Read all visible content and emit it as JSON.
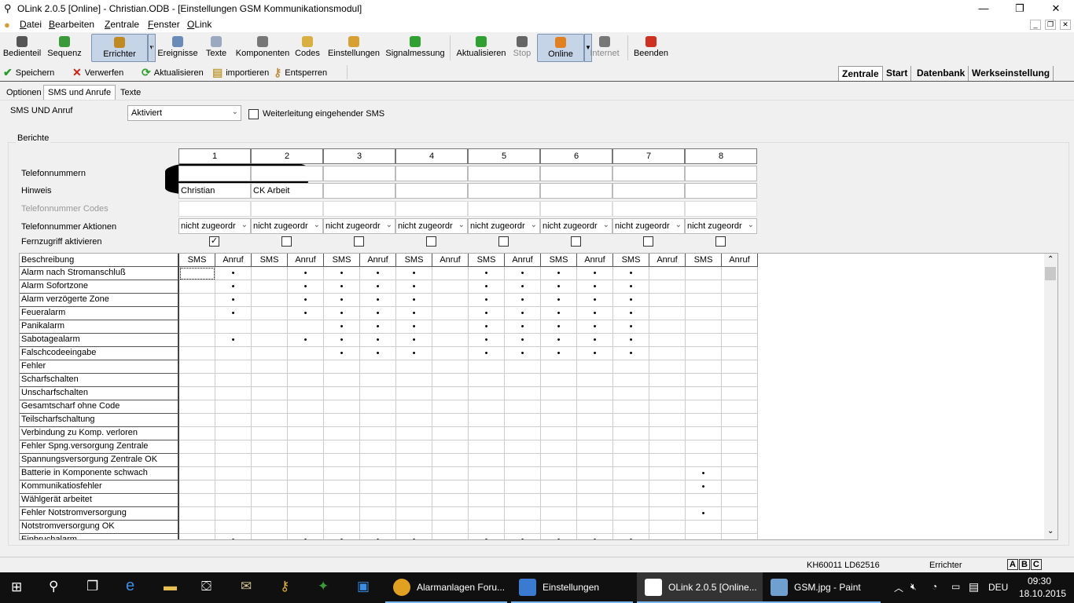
{
  "window": {
    "title": "OLink 2.0.5 [Online] - Christian.ODB - [Einstellungen GSM Kommunikationsmodul]",
    "minimize": "—",
    "maximize": "❐",
    "close": "✕"
  },
  "menu": [
    "Datei",
    "Bearbeiten",
    "Zentrale",
    "Fenster",
    "OLink"
  ],
  "mdi": [
    "_",
    "❐",
    "✕"
  ],
  "toolbar": [
    {
      "label": "Bedienteil",
      "icon": "keypad-icon",
      "color": "#555555"
    },
    {
      "label": "Sequenz",
      "icon": "sequence-icon",
      "color": "#3a9a3a"
    },
    {
      "label": "Errichter",
      "icon": "installer-icon",
      "color": "#c08a20",
      "selected": true
    },
    {
      "label": "Ereignisse",
      "icon": "clock-icon",
      "color": "#6a8ab8"
    },
    {
      "label": "Texte",
      "icon": "document-icon",
      "color": "#9aa8c0"
    },
    {
      "label": "Komponenten",
      "icon": "components-icon",
      "color": "#777777"
    },
    {
      "label": "Codes",
      "icon": "lock-icon",
      "color": "#d8b040"
    },
    {
      "label": "Einstellungen",
      "icon": "settings-icon",
      "color": "#d8a030"
    },
    {
      "label": "Signalmessung",
      "icon": "signal-icon",
      "color": "#30a030"
    },
    {
      "label": "Aktualisieren",
      "icon": "refresh-icon",
      "color": "#30a030"
    },
    {
      "label": "Stop",
      "icon": "stop-icon",
      "color": "#666666",
      "disabled": true
    },
    {
      "label": "Online",
      "icon": "online-icon",
      "color": "#e08020",
      "selected": true
    },
    {
      "label": "Internet",
      "icon": "internet-icon",
      "color": "#777777",
      "disabled": true
    },
    {
      "label": "Beenden",
      "icon": "exit-icon",
      "color": "#d03020"
    }
  ],
  "toolbar2": [
    {
      "label": "Speichern",
      "glyph": "✔",
      "color": "#2a9a2a",
      "icon": "check-icon"
    },
    {
      "label": "Verwerfen",
      "glyph": "✕",
      "color": "#d02010",
      "icon": "discard-icon"
    },
    {
      "label": "Aktualisieren",
      "glyph": "⟳",
      "color": "#30a030",
      "icon": "refresh-icon"
    },
    {
      "label": "importieren",
      "glyph": "▤",
      "color": "#c0a040",
      "icon": "import-icon"
    },
    {
      "label": "Entsperren",
      "glyph": "⚷",
      "color": "#c09040",
      "icon": "keys-icon"
    }
  ],
  "right_tabs": [
    {
      "label": "Zentrale",
      "active": true
    },
    {
      "label": "Start"
    },
    {
      "label": "Datenbank"
    },
    {
      "label": "Werkseinstellung"
    }
  ],
  "tabs": [
    {
      "label": "Optionen"
    },
    {
      "label": "SMS und Anrufe",
      "active": true
    },
    {
      "label": "Texte"
    }
  ],
  "sms_anruf": {
    "label": "SMS UND Anruf",
    "value": "Aktiviert",
    "forward_label": "Weiterleitung eingehender SMS",
    "forward_checked": false
  },
  "berichte": {
    "title": "Berichte",
    "numbers": [
      "1",
      "2",
      "3",
      "4",
      "5",
      "6",
      "7",
      "8"
    ],
    "row_labels": {
      "tel": "Telefonnummern",
      "hinweis": "Hinweis",
      "codes": "Telefonnummer Codes",
      "aktionen": "Telefonnummer Aktionen",
      "fern": "Fernzugriff aktivieren"
    },
    "hinweis": [
      "Christian",
      "CK Arbeit",
      "",
      "",
      "",
      "",
      "",
      ""
    ],
    "aktionen": [
      "nicht zugeordr",
      "nicht zugeordr",
      "nicht zugeordr",
      "nicht zugeordr",
      "nicht zugeordr",
      "nicht zugeordr",
      "nicht zugeordr",
      "nicht zugeordr"
    ],
    "fernzugriff": [
      true,
      false,
      false,
      false,
      false,
      false,
      false,
      false
    ]
  },
  "grid": {
    "desc_header": "Beschreibung",
    "sub_headers": [
      "SMS",
      "Anruf"
    ],
    "mark": "•",
    "rows": [
      {
        "label": "Alarm nach Stromanschluß",
        "marks": [
          1,
          3,
          4,
          5,
          6,
          8,
          9,
          10,
          11,
          12
        ]
      },
      {
        "label": "Alarm Sofortzone",
        "marks": [
          1,
          3,
          4,
          5,
          6,
          8,
          9,
          10,
          11,
          12
        ]
      },
      {
        "label": "Alarm verzögerte Zone",
        "marks": [
          1,
          3,
          4,
          5,
          6,
          8,
          9,
          10,
          11,
          12
        ]
      },
      {
        "label": "Feueralarm",
        "marks": [
          1,
          3,
          4,
          5,
          6,
          8,
          9,
          10,
          11,
          12
        ]
      },
      {
        "label": "Panikalarm",
        "marks": [
          4,
          5,
          6,
          8,
          9,
          10,
          11,
          12
        ]
      },
      {
        "label": "Sabotagealarm",
        "marks": [
          1,
          3,
          4,
          5,
          6,
          8,
          9,
          10,
          11,
          12
        ]
      },
      {
        "label": "Falschcodeeingabe",
        "marks": [
          4,
          5,
          6,
          8,
          9,
          10,
          11,
          12
        ]
      },
      {
        "label": "Fehler",
        "marks": []
      },
      {
        "label": "Scharfschalten",
        "marks": []
      },
      {
        "label": "Unscharfschalten",
        "marks": []
      },
      {
        "label": "Gesamtscharf ohne Code",
        "marks": []
      },
      {
        "label": "Teilscharfschaltung",
        "marks": []
      },
      {
        "label": "Verbindung zu Komp. verloren",
        "marks": []
      },
      {
        "label": "Fehler Spng.versorgung Zentrale",
        "marks": []
      },
      {
        "label": "Spannungsversorgung Zentrale OK",
        "marks": []
      },
      {
        "label": "Batterie in Komponente schwach",
        "marks": [
          14
        ]
      },
      {
        "label": "Kommunikatiosfehler",
        "marks": [
          14
        ]
      },
      {
        "label": "Wählgerät arbeitet",
        "marks": []
      },
      {
        "label": "Fehler Notstromversorgung",
        "marks": [
          14
        ]
      },
      {
        "label": "Notstromversorgung OK",
        "marks": []
      },
      {
        "label": "Einbruchalarm",
        "marks": [
          1,
          3,
          4,
          5,
          6,
          8,
          9,
          10,
          11,
          12
        ]
      }
    ]
  },
  "status": {
    "ids": "KH60011   LD62516",
    "role": "Errichter",
    "abc": [
      "A",
      "B",
      "C"
    ]
  },
  "taskbar": {
    "items": [
      {
        "label": "Alarmanlagen Foru...",
        "icon": "chrome-icon",
        "color": "#e0a020",
        "state": "open"
      },
      {
        "label": "Einstellungen",
        "icon": "settings-icon",
        "color": "#3a7ad0",
        "state": "open"
      },
      {
        "label": "OLink 2.0.5 [Online...",
        "icon": "olink-icon",
        "color": "#ffffff",
        "state": "active"
      },
      {
        "label": "GSM.jpg - Paint",
        "icon": "paint-icon",
        "color": "#70a0d0",
        "state": "open"
      }
    ],
    "lang": "DEU",
    "time": "09:30",
    "date": "18.10.2015"
  }
}
